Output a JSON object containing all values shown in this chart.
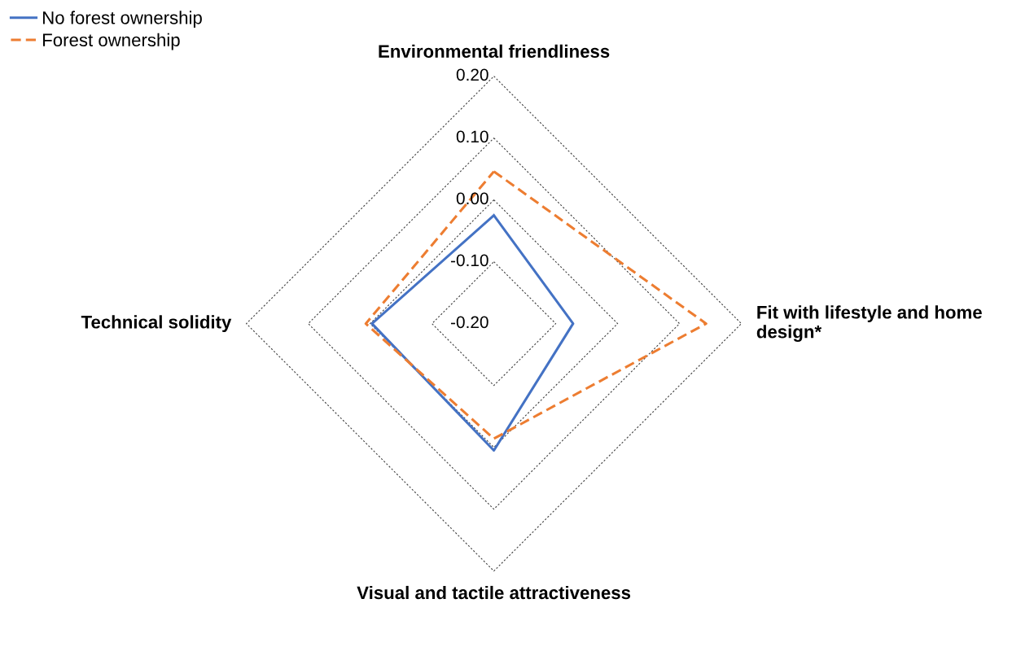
{
  "chart_data": {
    "type": "radar",
    "categories": [
      "Environmental friendliness",
      "Fit with lifestyle and home design*",
      "Visual and tactile attractiveness",
      "Technical solidity"
    ],
    "series": [
      {
        "name": "No forest ownership",
        "color": "#4472c4",
        "line_style": "solid",
        "values": [
          -0.025,
          -0.072,
          0.005,
          -0.003
        ]
      },
      {
        "name": "Forest ownership",
        "color": "#ed7d31",
        "line_style": "dashed",
        "values": [
          0.046,
          0.143,
          -0.014,
          0.007
        ]
      }
    ],
    "ylim": [
      -0.2,
      0.2
    ],
    "yticks": [
      {
        "value": -0.2,
        "label": "-0.20"
      },
      {
        "value": -0.1,
        "label": "-0.10"
      },
      {
        "value": 0.0,
        "label": "0.00"
      },
      {
        "value": 0.1,
        "label": "0.10"
      },
      {
        "value": 0.2,
        "label": "0.20"
      }
    ],
    "grid": true,
    "legend": "top left",
    "marker": "none"
  }
}
